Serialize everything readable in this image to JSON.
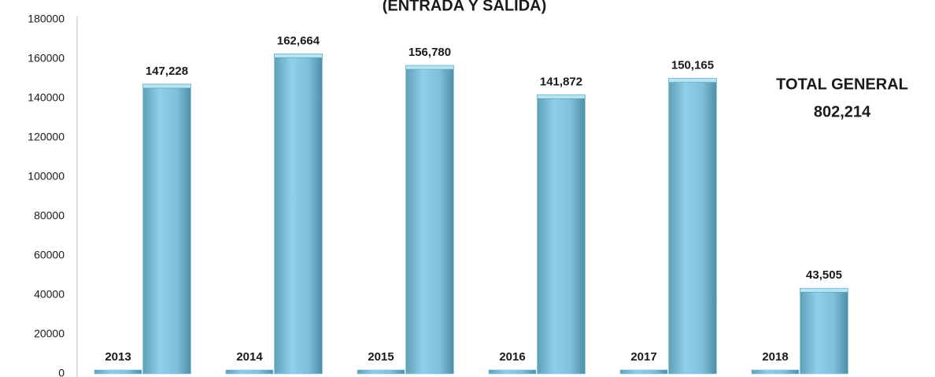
{
  "chart_data": {
    "type": "bar",
    "title": "(ENTRADA Y SALIDA)",
    "annotations": [
      "TOTAL GENERAL",
      "802,214"
    ],
    "series": [
      {
        "name": null,
        "color": "#7fc6df",
        "values": [
          2013,
          2014,
          2015,
          2016,
          2017,
          2018
        ]
      },
      {
        "name": null,
        "color": "#7fc6df",
        "values": [
          147228,
          162664,
          156780,
          141872,
          150165,
          43505
        ],
        "value_labels": [
          "147,228",
          "162,664",
          "156,780",
          "141,872",
          "150,165",
          "43,505"
        ]
      }
    ],
    "ylim": [
      0,
      180000
    ],
    "yticks": [
      0,
      20000,
      40000,
      60000,
      80000,
      100000,
      120000,
      140000,
      160000,
      180000
    ],
    "grid": false
  }
}
